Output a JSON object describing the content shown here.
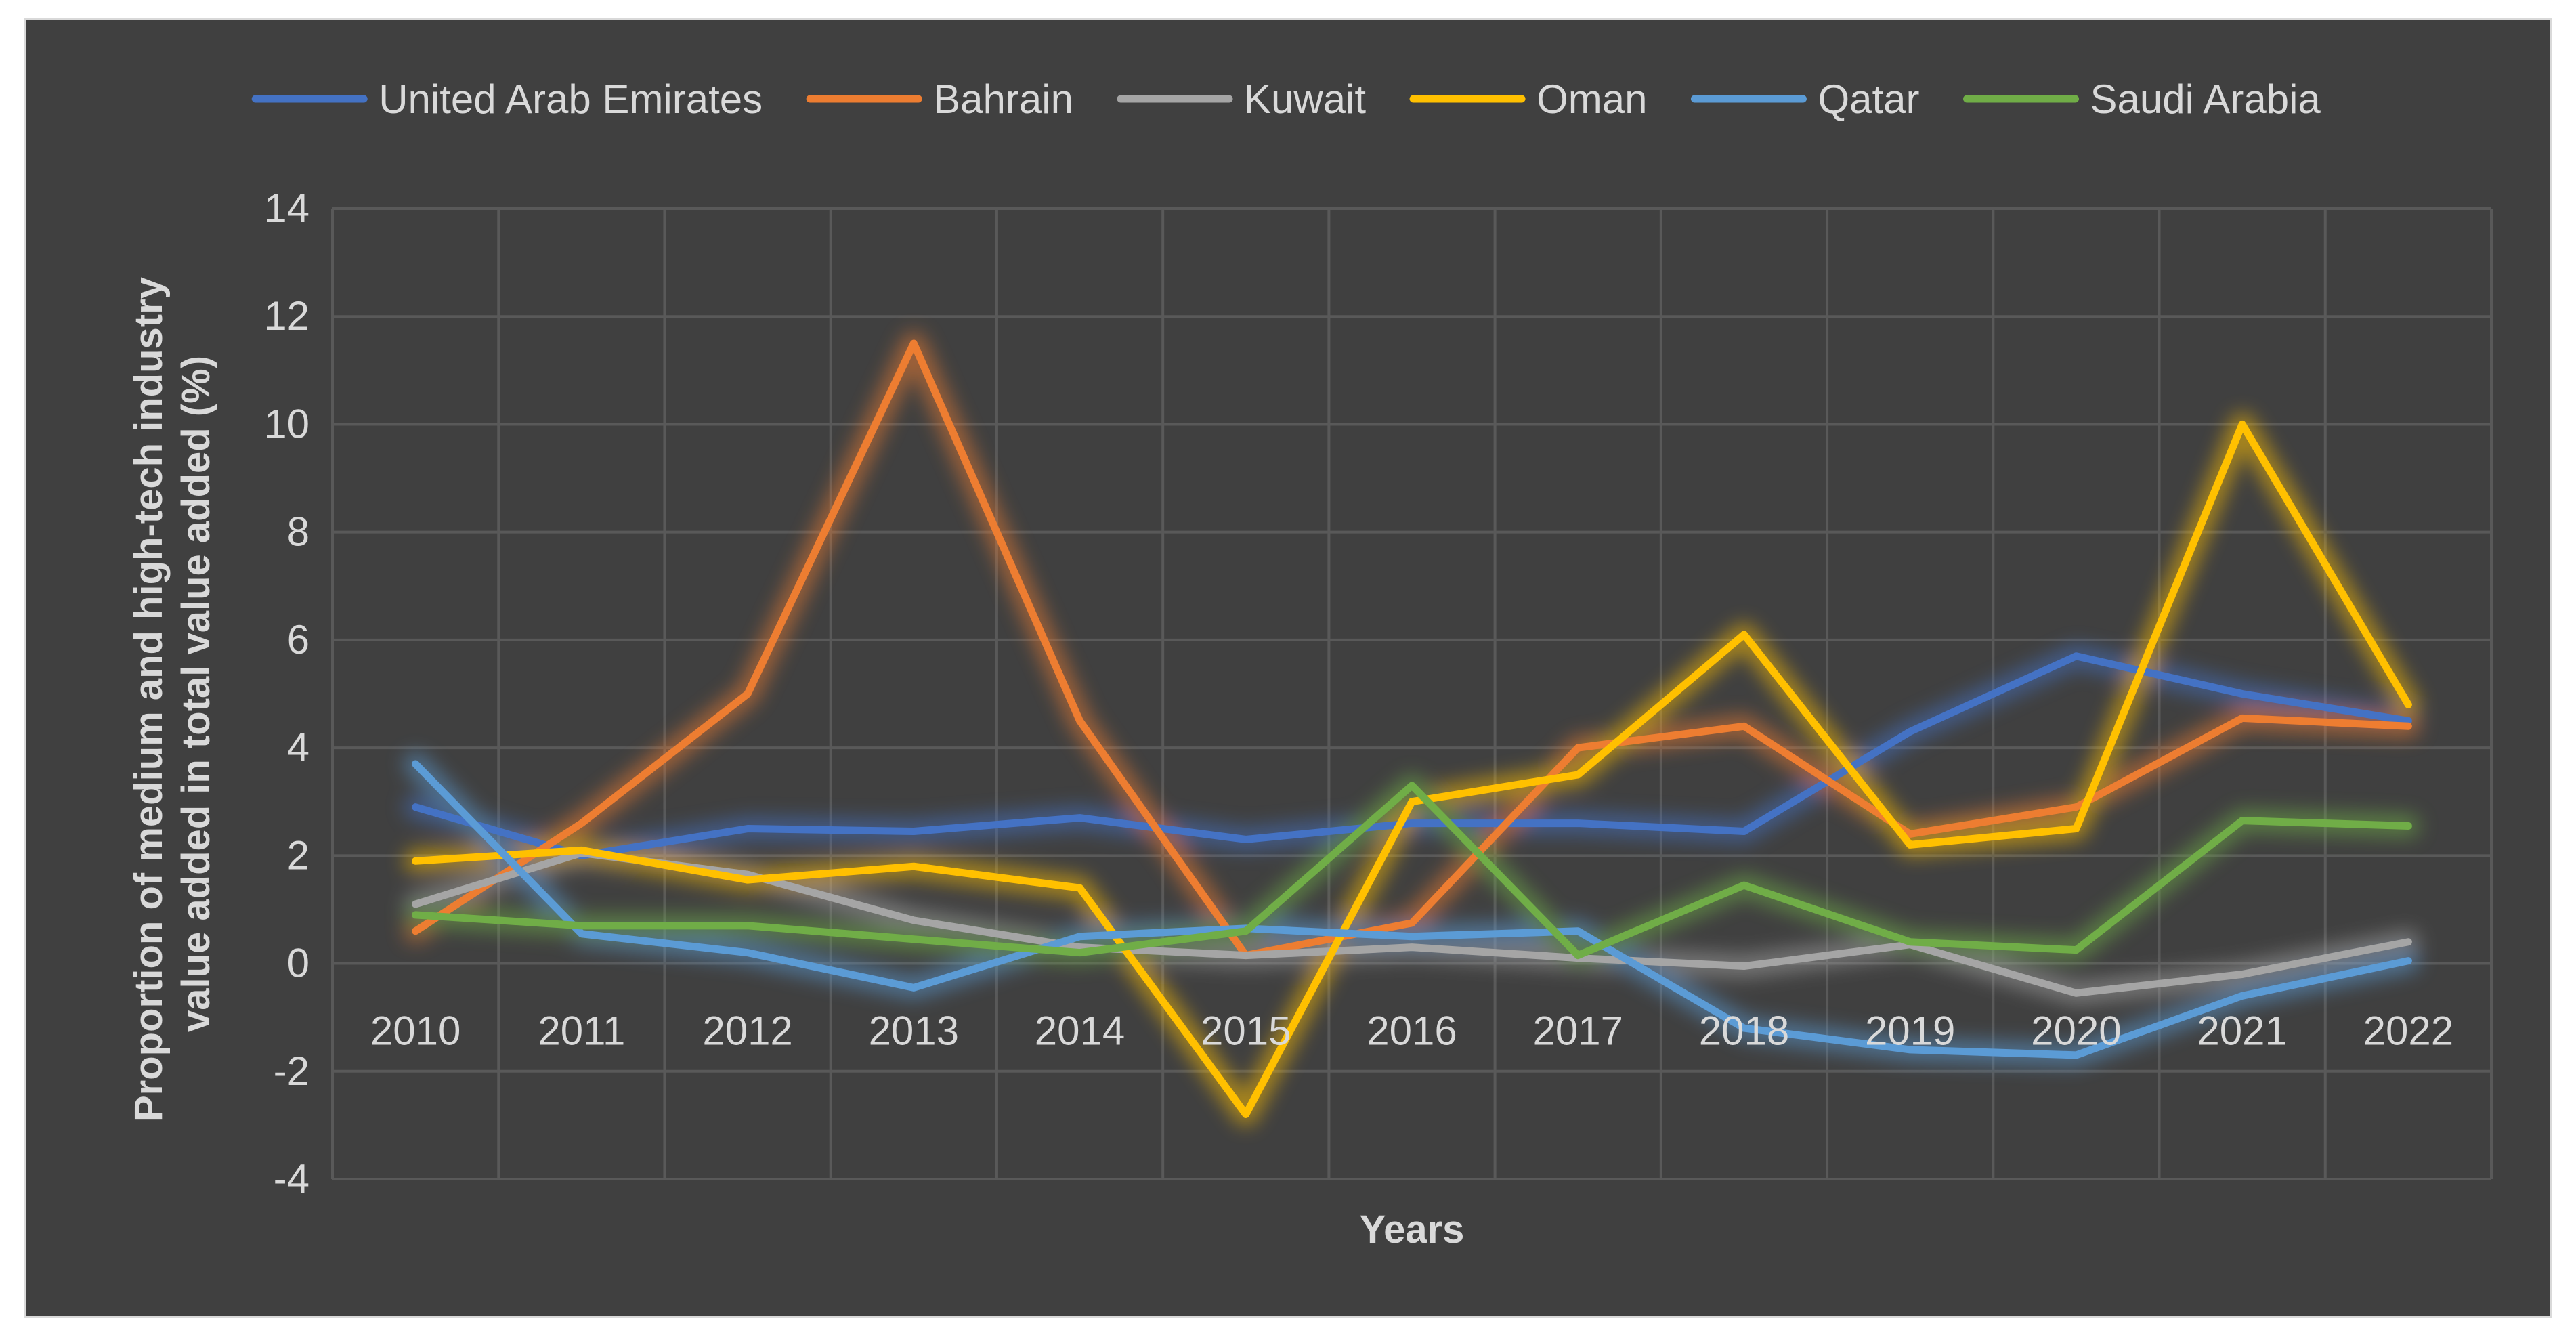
{
  "chart_data": {
    "type": "line",
    "title": "",
    "xlabel": "Years",
    "ylabel_lines": [
      "Proportion of medium and high-tech industry",
      "value added in total value added (%)"
    ],
    "categories": [
      "2010",
      "2011",
      "2012",
      "2013",
      "2014",
      "2015",
      "2016",
      "2017",
      "2018",
      "2019",
      "2020",
      "2021",
      "2022"
    ],
    "ylim": [
      -4,
      14
    ],
    "yticks": [
      -4,
      -2,
      0,
      2,
      4,
      6,
      8,
      10,
      12,
      14
    ],
    "ytick_labels": [
      "-4",
      "-2",
      "0",
      "2",
      "4",
      "6",
      "8",
      "10",
      "12",
      "14"
    ],
    "legend_position": "top",
    "grid": true,
    "series": [
      {
        "name": "United Arab Emirates",
        "color": "#4472c4",
        "values": [
          2.9,
          2.0,
          2.5,
          2.45,
          2.7,
          2.3,
          2.6,
          2.6,
          2.45,
          4.3,
          5.7,
          5.0,
          4.5
        ]
      },
      {
        "name": "Bahrain",
        "color": "#ed7d31",
        "values": [
          0.6,
          2.6,
          5.0,
          11.5,
          4.5,
          0.15,
          0.75,
          4.0,
          4.4,
          2.4,
          2.9,
          4.55,
          4.4
        ]
      },
      {
        "name": "Kuwait",
        "color": "#a5a5a5",
        "values": [
          1.1,
          2.05,
          1.65,
          0.8,
          0.3,
          0.15,
          0.3,
          0.1,
          -0.05,
          0.35,
          -0.55,
          -0.2,
          0.4
        ]
      },
      {
        "name": "Oman",
        "color": "#ffc000",
        "values": [
          1.9,
          2.1,
          1.55,
          1.8,
          1.4,
          -2.8,
          3.0,
          3.5,
          6.1,
          2.2,
          2.5,
          10.0,
          4.8
        ]
      },
      {
        "name": "Qatar",
        "color": "#5b9bd5",
        "values": [
          3.7,
          0.55,
          0.2,
          -0.45,
          0.5,
          0.65,
          0.5,
          0.6,
          -1.2,
          -1.6,
          -1.7,
          -0.6,
          0.05
        ]
      },
      {
        "name": "Saudi Arabia",
        "color": "#70ad47",
        "values": [
          0.9,
          0.7,
          0.7,
          0.45,
          0.2,
          0.6,
          3.3,
          0.15,
          1.45,
          0.4,
          0.25,
          2.65,
          2.55
        ]
      }
    ]
  }
}
